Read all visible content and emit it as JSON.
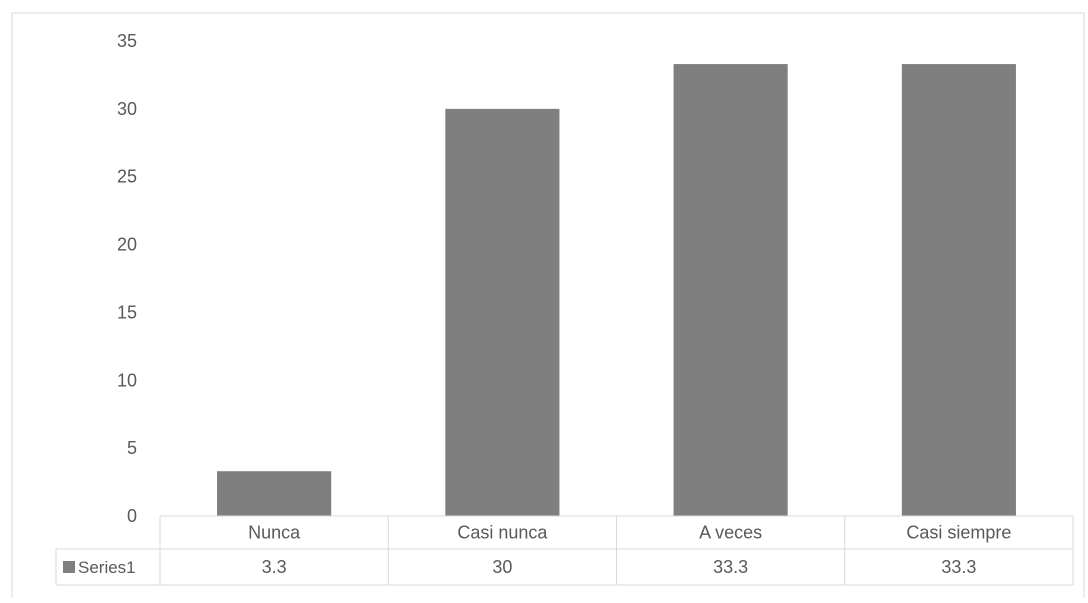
{
  "chart_data": {
    "type": "bar",
    "title": "",
    "xlabel": "",
    "ylabel": "",
    "categories": [
      "Nunca",
      "Casi nunca",
      "A veces",
      "Casi siempre"
    ],
    "series": [
      {
        "name": "Series1",
        "values": [
          3.3,
          30,
          33.3,
          33.3
        ],
        "labels": [
          "3.3",
          "30",
          "33.3",
          "33.3"
        ]
      }
    ],
    "ylim": [
      0,
      35
    ],
    "yticks": [
      0,
      5,
      10,
      15,
      20,
      25,
      30,
      35
    ],
    "grid": false,
    "legend": "data-table",
    "bar_color": "#7f7f7f",
    "border_color": "#d9d9d9"
  }
}
